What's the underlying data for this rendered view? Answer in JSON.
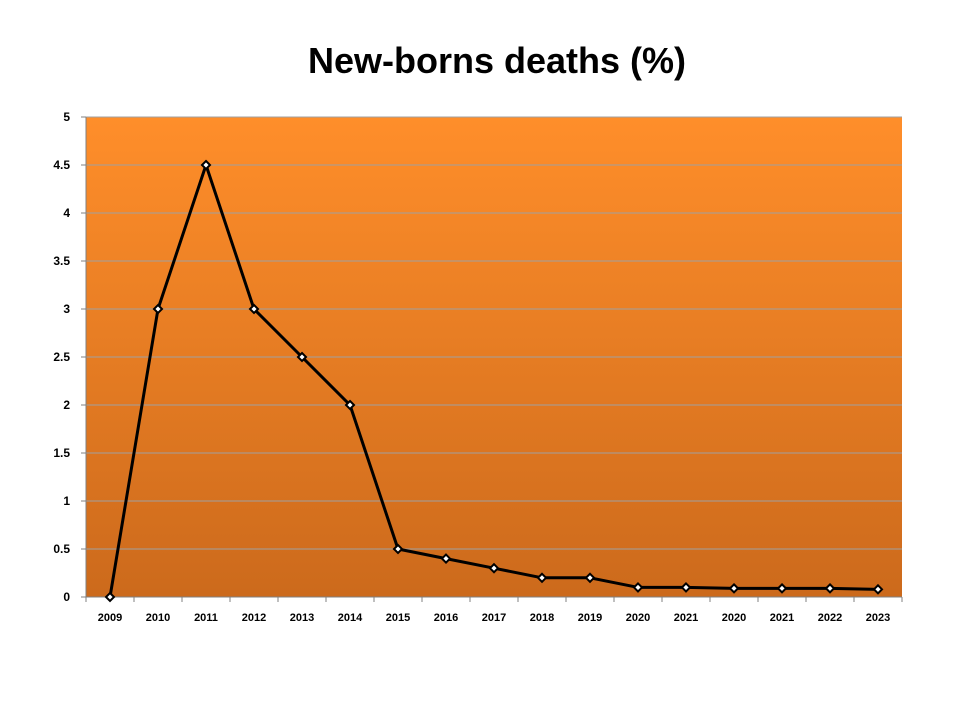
{
  "chart_data": {
    "type": "line",
    "title": "New-borns deaths (%)",
    "xlabel": "",
    "ylabel": "",
    "categories": [
      "2009",
      "2010",
      "2011",
      "2012",
      "2013",
      "2014",
      "2015",
      "2016",
      "2017",
      "2018",
      "2019",
      "2020",
      "2021",
      "2020",
      "2021",
      "2022",
      "2023"
    ],
    "series": [
      {
        "values": [
          0,
          3,
          4.5,
          3,
          2.5,
          2,
          0.5,
          0.4,
          0.3,
          0.2,
          0.2,
          0.1,
          0.1,
          0.09,
          0.09,
          0.09,
          0.08
        ]
      }
    ],
    "ylim": [
      0,
      5
    ],
    "yticks": [
      "0",
      "0.5",
      "1",
      "1.5",
      "2",
      "2.5",
      "3",
      "3.5",
      "4",
      "4.5",
      "5"
    ],
    "grid": true,
    "legend": "none",
    "colors": {
      "plot_top": "#ff8e2a",
      "plot_bottom": "#cc6a1c",
      "line": "#000000",
      "marker_fill": "#ffffff",
      "gridline": "#a0a0a0"
    }
  }
}
